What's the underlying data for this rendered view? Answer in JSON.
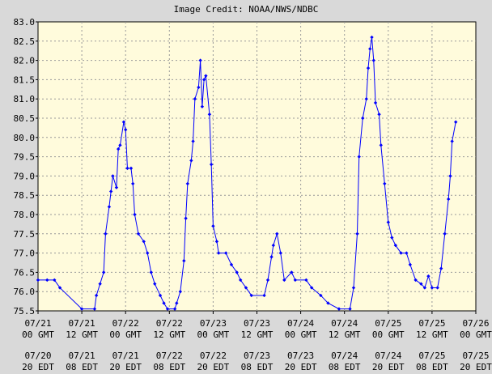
{
  "chart_data": {
    "type": "line",
    "subtitle": "Image Credit: NOAA/NWS/NDBC",
    "color": "#0000ff",
    "grid": true,
    "x": [
      "07/21 00:00",
      "07/21 02:30",
      "07/21 04:30",
      "07/21 06:00",
      "07/21 12:00",
      "07/21 15:30",
      "07/21 16:00",
      "07/21 17:00",
      "07/21 18:00",
      "07/21 18:30",
      "07/21 19:30",
      "07/21 20:00",
      "07/21 20:30",
      "07/21 21:30",
      "07/21 22:00",
      "07/21 22:30",
      "07/21 23:30",
      "07/22 00:00",
      "07/22 00:30",
      "07/22 01:30",
      "07/22 02:00",
      "07/22 02:30",
      "07/22 03:30",
      "07/22 05:00",
      "07/22 06:00",
      "07/22 07:00",
      "07/22 08:00",
      "07/22 09:30",
      "07/22 10:30",
      "07/22 11:30",
      "07/22 13:30",
      "07/22 14:00",
      "07/22 15:00",
      "07/22 16:00",
      "07/22 16:30",
      "07/22 17:00",
      "07/22 18:00",
      "07/22 18:30",
      "07/22 19:00",
      "07/22 20:00",
      "07/22 20:30",
      "07/22 21:00",
      "07/22 21:30",
      "07/22 22:00",
      "07/22 23:00",
      "07/22 23:30",
      "07/23 00:00",
      "07/23 01:00",
      "07/23 01:30",
      "07/23 03:30",
      "07/23 05:00",
      "07/23 06:30",
      "07/23 07:30",
      "07/23 09:00",
      "07/23 10:30",
      "07/23 14:00",
      "07/23 15:00",
      "07/23 16:00",
      "07/23 16:30",
      "07/23 17:30",
      "07/23 18:30",
      "07/23 19:30",
      "07/23 21:30",
      "07/23 22:30",
      "07/24 01:30",
      "07/24 03:00",
      "07/24 05:30",
      "07/24 07:30",
      "07/24 10:30",
      "07/24 13:30",
      "07/24 14:30",
      "07/24 15:30",
      "07/24 16:00",
      "07/24 17:00",
      "07/24 18:00",
      "07/24 18:30",
      "07/24 19:00",
      "07/24 19:30",
      "07/24 20:00",
      "07/24 20:30",
      "07/24 21:30",
      "07/24 22:00",
      "07/24 23:00",
      "07/25 00:00",
      "07/25 01:00",
      "07/25 02:00",
      "07/25 03:30",
      "07/25 05:00",
      "07/25 06:00",
      "07/25 07:30",
      "07/25 09:00",
      "07/25 10:00",
      "07/25 11:00",
      "07/25 12:00",
      "07/25 13:30",
      "07/25 14:30",
      "07/25 15:30",
      "07/25 16:30",
      "07/25 17:00",
      "07/25 17:30",
      "07/25 18:30"
    ],
    "values": [
      76.3,
      76.3,
      76.3,
      76.1,
      75.55,
      75.55,
      75.9,
      76.2,
      76.5,
      77.5,
      78.2,
      78.6,
      79.0,
      78.7,
      79.7,
      79.8,
      80.4,
      80.2,
      79.2,
      79.2,
      78.8,
      78.0,
      77.5,
      77.3,
      77.0,
      76.5,
      76.2,
      75.9,
      75.7,
      75.55,
      75.55,
      75.7,
      76.0,
      76.8,
      77.9,
      78.8,
      79.4,
      79.9,
      81.0,
      81.3,
      82.0,
      80.8,
      81.5,
      81.6,
      80.6,
      79.3,
      77.7,
      77.3,
      77.0,
      77.0,
      76.7,
      76.5,
      76.3,
      76.1,
      75.9,
      75.9,
      76.3,
      76.9,
      77.2,
      77.5,
      77.0,
      76.3,
      76.5,
      76.3,
      76.3,
      76.1,
      75.9,
      75.7,
      75.55,
      75.55,
      76.1,
      77.5,
      79.5,
      80.5,
      81.0,
      81.8,
      82.3,
      82.6,
      82.0,
      80.9,
      80.6,
      79.8,
      78.8,
      77.8,
      77.4,
      77.2,
      77.0,
      77.0,
      76.7,
      76.3,
      76.2,
      76.1,
      76.4,
      76.1,
      76.1,
      76.6,
      77.5,
      78.4,
      79.0,
      79.9,
      80.4
    ],
    "xlim": [
      "07/21 00:00",
      "07/26 00:00"
    ],
    "xticks": [
      {
        "value": "07/21 00:00",
        "label": "07/21 00 GMT"
      },
      {
        "value": "07/21 12:00",
        "label": "07/21 12 GMT"
      },
      {
        "value": "07/22 00:00",
        "label": "07/22 00 GMT"
      },
      {
        "value": "07/22 12:00",
        "label": "07/22 12 GMT"
      },
      {
        "value": "07/23 00:00",
        "label": "07/23 00 GMT"
      },
      {
        "value": "07/23 12:00",
        "label": "07/23 12 GMT"
      },
      {
        "value": "07/24 00:00",
        "label": "07/24 00 GMT"
      },
      {
        "value": "07/24 12:00",
        "label": "07/24 12 GMT"
      },
      {
        "value": "07/25 00:00",
        "label": "07/25 00 GMT"
      },
      {
        "value": "07/25 12:00",
        "label": "07/25 12 GMT"
      },
      {
        "value": "07/26 00:00",
        "label": "07/26 00 GMT"
      }
    ],
    "x_local_labels": [
      "07/20 20 EDT",
      "07/21 08 EDT",
      "07/21 20 EDT",
      "07/22 08 EDT",
      "07/22 20 EDT",
      "07/23 08 EDT",
      "07/23 20 EDT",
      "07/24 08 EDT",
      "07/24 20 EDT",
      "07/25 08 EDT",
      "07/25 20 EDT"
    ],
    "ylim": [
      75.5,
      83
    ],
    "yticks": [
      {
        "value": 75.5,
        "label": "75.5"
      },
      {
        "value": 76,
        "label": "76.0"
      },
      76.5,
      {
        "value": 77,
        "label": "77.0"
      },
      77.5,
      {
        "value": 78,
        "label": "78.0"
      },
      78.5,
      {
        "value": 79,
        "label": "79.0"
      },
      79.5,
      {
        "value": 80,
        "label": "80.0"
      },
      80.5,
      {
        "value": 81,
        "label": "81.0"
      },
      81.5,
      {
        "value": 82,
        "label": "82.0"
      },
      82.5,
      {
        "value": 83,
        "label": "83.0"
      }
    ]
  }
}
